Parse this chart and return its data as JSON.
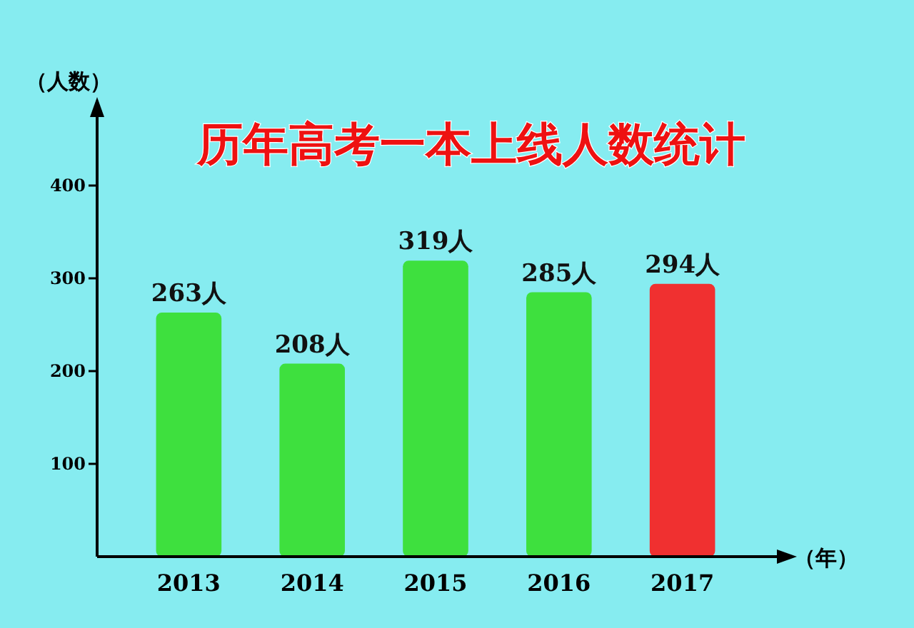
{
  "chart_data": {
    "type": "bar",
    "title": "历年高考一本上线人数统计",
    "ylabel": "（人数）",
    "xlabel": "（年）",
    "categories": [
      "2013",
      "2014",
      "2015",
      "2016",
      "2017"
    ],
    "values": [
      263,
      208,
      319,
      285,
      294
    ],
    "colors": [
      "#3ee03e",
      "#3ee03e",
      "#3ee03e",
      "#3ee03e",
      "#f03030"
    ],
    "value_labels": [
      "263人",
      "208人",
      "319人",
      "285人",
      "294人"
    ],
    "ylim": [
      0,
      480
    ],
    "yticks": [
      100,
      200,
      300,
      400
    ]
  }
}
